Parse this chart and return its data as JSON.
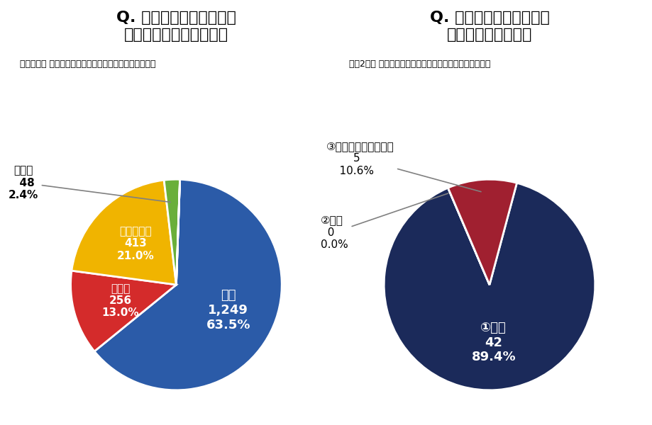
{
  "left_title_line1": "Q. クリーニング師試験は",
  "left_title_line2": "全国統一にした方が良い",
  "left_subtitle": "令和元年度 従事クリーニング師へのアンケート調査より",
  "left_slices": [
    {
      "label": "はい",
      "count": "1,249",
      "pct": "63.5%",
      "value": 63.5,
      "color": "#2B5BA8"
    },
    {
      "label": "いいえ",
      "count": "256",
      "pct": "13.0%",
      "value": 13.0,
      "color": "#D42B2B"
    },
    {
      "label": "わからない",
      "count": "413",
      "pct": "21.0%",
      "value": 21.0,
      "color": "#F0B400"
    },
    {
      "label": "無回答",
      "count": "48",
      "pct": "2.4%",
      "value": 2.4,
      "color": "#6AAF3A"
    },
    {
      "label": "",
      "count": "",
      "pct": "",
      "value": 0.001,
      "color": "#AAAAAA"
    }
  ],
  "right_title_line1": "Q. クリーニング師試験の",
  "right_title_line2": "全国統一化について",
  "right_subtitle": "令和2年度 都道府県衛生主管部局へのアンケート調査より",
  "right_slices": [
    {
      "label": "①賛成",
      "count": "42",
      "pct": "89.4%",
      "value": 89.4,
      "color": "#1B2A5A"
    },
    {
      "label": "②反対",
      "count": "0",
      "pct": "0.0%",
      "value": 0.001,
      "color": "#1B2A5A"
    },
    {
      "label": "③どちらとも言えない",
      "count": "5",
      "pct": "10.6%",
      "value": 10.6,
      "color": "#A02030"
    }
  ],
  "bg_color": "#FFFFFF"
}
